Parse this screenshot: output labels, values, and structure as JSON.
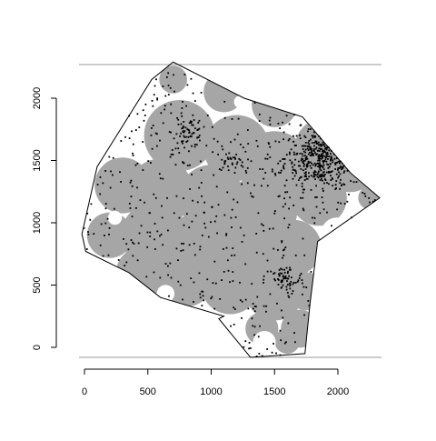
{
  "chart_data": {
    "type": "scatter",
    "title": "",
    "xlabel": "",
    "ylabel": "",
    "xlim": [
      -50,
      2350
    ],
    "ylim": [
      -80,
      2280
    ],
    "x_ticks": [
      0,
      500,
      1000,
      1500,
      2000
    ],
    "x_tick_labels": [
      "0",
      "500",
      "1000",
      "1500",
      "2000"
    ],
    "y_ticks": [
      0,
      500,
      1000,
      1500,
      2000
    ],
    "y_tick_labels": [
      "0",
      "500",
      "1000",
      "1500",
      "2000"
    ],
    "grid": false,
    "legend": "none",
    "colors": {
      "coverage_fill": "#a6a6a6",
      "points": "#000000",
      "window_outline": "#000000",
      "frame_lines": "#999999"
    },
    "window_polygon": [
      [
        -20,
        910
      ],
      [
        100,
        1450
      ],
      [
        530,
        2150
      ],
      [
        700,
        2290
      ],
      [
        1260,
        2000
      ],
      [
        1720,
        1850
      ],
      [
        2100,
        1400
      ],
      [
        2330,
        1200
      ],
      [
        1840,
        850
      ],
      [
        1780,
        350
      ],
      [
        1740,
        -50
      ],
      [
        1310,
        -80
      ],
      [
        1060,
        230
      ],
      [
        1100,
        250
      ],
      [
        600,
        400
      ],
      [
        350,
        600
      ],
      [
        10,
        770
      ]
    ],
    "coverage_blobs": [
      {
        "x": 700,
        "y": 2150,
        "r": 110
      },
      {
        "x": 1100,
        "y": 2050,
        "r": 160
      },
      {
        "x": 1500,
        "y": 1950,
        "r": 180
      },
      {
        "x": 1900,
        "y": 1600,
        "r": 240
      },
      {
        "x": 2100,
        "y": 1450,
        "r": 200
      },
      {
        "x": 750,
        "y": 1700,
        "r": 280
      },
      {
        "x": 1200,
        "y": 1600,
        "r": 260
      },
      {
        "x": 1500,
        "y": 1450,
        "r": 280
      },
      {
        "x": 1850,
        "y": 1200,
        "r": 220
      },
      {
        "x": 2250,
        "y": 1200,
        "r": 90
      },
      {
        "x": 300,
        "y": 1300,
        "r": 220
      },
      {
        "x": 600,
        "y": 1250,
        "r": 260
      },
      {
        "x": 1000,
        "y": 1200,
        "r": 260
      },
      {
        "x": 1400,
        "y": 1100,
        "r": 280
      },
      {
        "x": 200,
        "y": 900,
        "r": 180
      },
      {
        "x": 550,
        "y": 900,
        "r": 260
      },
      {
        "x": 950,
        "y": 850,
        "r": 260
      },
      {
        "x": 1300,
        "y": 800,
        "r": 260
      },
      {
        "x": 1650,
        "y": 800,
        "r": 220
      },
      {
        "x": 450,
        "y": 600,
        "r": 200
      },
      {
        "x": 800,
        "y": 550,
        "r": 220
      },
      {
        "x": 1150,
        "y": 500,
        "r": 230
      },
      {
        "x": 1500,
        "y": 450,
        "r": 230
      },
      {
        "x": 1750,
        "y": 450,
        "r": 150
      },
      {
        "x": 1400,
        "y": 150,
        "r": 130
      },
      {
        "x": 1700,
        "y": 150,
        "r": 150
      },
      {
        "x": 1600,
        "y": 50,
        "r": 100
      }
    ],
    "holes": [
      {
        "x": 350,
        "y": 1650,
        "r": 90
      },
      {
        "x": 240,
        "y": 1040,
        "r": 55
      },
      {
        "x": 640,
        "y": 430,
        "r": 70
      },
      {
        "x": 1420,
        "y": 40,
        "r": 90
      },
      {
        "x": 1990,
        "y": 920,
        "r": 120
      },
      {
        "x": 1230,
        "y": 1970,
        "r": 50
      }
    ],
    "clusters": [
      {
        "x": 1880,
        "y": 1520,
        "sx": 150,
        "sy": 120,
        "n": 360
      },
      {
        "x": 820,
        "y": 1720,
        "sx": 60,
        "sy": 60,
        "n": 60
      },
      {
        "x": 1150,
        "y": 1490,
        "sx": 60,
        "sy": 40,
        "n": 25
      },
      {
        "x": 1580,
        "y": 540,
        "sx": 80,
        "sy": 60,
        "n": 55
      }
    ],
    "background_points": 500
  }
}
